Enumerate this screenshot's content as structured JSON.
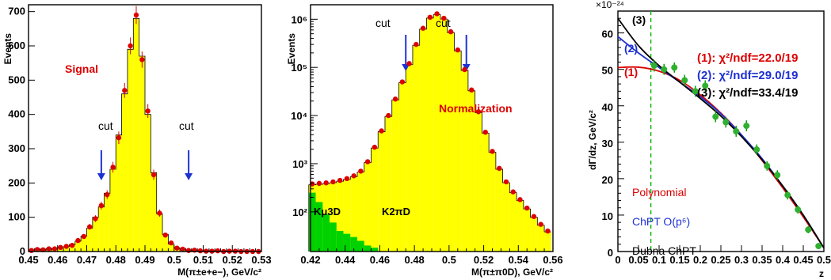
{
  "chart_data": [
    {
      "type": "bar",
      "ylabel": "Events",
      "xlabel": "M(π±e+e−), GeV/c²",
      "annotations": {
        "signal": "Signal",
        "cut_left": "cut",
        "cut_right": "cut"
      },
      "xlim": [
        0.45,
        0.53
      ],
      "ylim": [
        0,
        720
      ],
      "x_ticks": [
        0.45,
        0.46,
        0.47,
        0.48,
        0.49,
        0.5,
        0.51,
        0.52,
        0.53
      ],
      "x_tick_labels": [
        "0.45",
        "0.46",
        "0.47",
        "0.48",
        "0.49",
        "0.5",
        "0.51",
        "0.52",
        "0.53"
      ],
      "y_ticks": [
        0,
        100,
        200,
        300,
        400,
        500,
        600,
        700
      ],
      "y_tick_labels": [
        "0",
        "100",
        "200",
        "300",
        "400",
        "500",
        "600",
        "700"
      ],
      "cuts": [
        0.475,
        0.505
      ],
      "x": [
        0.451,
        0.453,
        0.455,
        0.457,
        0.459,
        0.461,
        0.463,
        0.465,
        0.467,
        0.469,
        0.471,
        0.473,
        0.475,
        0.477,
        0.479,
        0.481,
        0.483,
        0.485,
        0.487,
        0.489,
        0.491,
        0.493,
        0.495,
        0.497,
        0.499,
        0.501,
        0.503,
        0.505,
        0.507,
        0.509,
        0.511,
        0.513,
        0.515,
        0.517,
        0.519,
        0.521,
        0.523,
        0.525,
        0.527,
        0.529
      ],
      "mc_values": [
        4,
        5,
        6,
        7,
        9,
        11,
        14,
        20,
        30,
        45,
        68,
        100,
        130,
        170,
        240,
        340,
        460,
        590,
        680,
        570,
        400,
        230,
        110,
        50,
        22,
        11,
        6,
        4,
        3,
        2,
        2,
        1,
        1,
        1,
        1,
        0,
        0,
        0,
        0,
        0
      ],
      "data_values": [
        3,
        6,
        5,
        8,
        8,
        12,
        15,
        18,
        32,
        44,
        72,
        96,
        134,
        166,
        246,
        332,
        470,
        600,
        690,
        560,
        410,
        224,
        112,
        48,
        25,
        10,
        7,
        3,
        4,
        2,
        1,
        1,
        2,
        0,
        1,
        1,
        0,
        0,
        0,
        0
      ]
    },
    {
      "type": "bar",
      "ylabel": "Events",
      "xlabel": "M(π±π0D), GeV/c²",
      "log_scale": true,
      "annotations": {
        "normalization": "Normalization",
        "cut_left": "cut",
        "cut_right": "cut",
        "region_left": "Kμ3D",
        "region_right": "K2πD"
      },
      "xlim": [
        0.42,
        0.56
      ],
      "ylim": [
        15,
        2000000
      ],
      "x_ticks": [
        0.42,
        0.44,
        0.46,
        0.48,
        0.5,
        0.52,
        0.54,
        0.56
      ],
      "x_tick_labels": [
        "0.42",
        "0.44",
        "0.46",
        "0.48",
        "0.5",
        "0.52",
        "0.54",
        "0.56"
      ],
      "y_ticks": [
        100,
        1000,
        10000,
        100000,
        1000000
      ],
      "y_tick_labels": [
        "10²",
        "10³",
        "10⁴",
        "10⁵",
        "10⁶"
      ],
      "cuts": [
        0.475,
        0.51
      ],
      "x": [
        0.421,
        0.425,
        0.429,
        0.433,
        0.437,
        0.441,
        0.445,
        0.449,
        0.453,
        0.457,
        0.461,
        0.465,
        0.469,
        0.473,
        0.477,
        0.481,
        0.485,
        0.489,
        0.493,
        0.497,
        0.501,
        0.505,
        0.509,
        0.513,
        0.517,
        0.521,
        0.525,
        0.529,
        0.533,
        0.537,
        0.541,
        0.545,
        0.549,
        0.553,
        0.557
      ],
      "data_values": [
        380,
        390,
        400,
        420,
        450,
        490,
        560,
        700,
        1100,
        2200,
        4800,
        10000,
        22000,
        50000,
        120000,
        300000,
        650000,
        1100000,
        1300000,
        1050000,
        550000,
        230000,
        90000,
        34000,
        12000,
        4500,
        1800,
        800,
        420,
        260,
        180,
        120,
        80,
        55,
        40
      ],
      "green_values": [
        250,
        160,
        90,
        60,
        40,
        35,
        30,
        25,
        20,
        18,
        15,
        12,
        10,
        0,
        0,
        0,
        0,
        0,
        0,
        0,
        0,
        0,
        0,
        0,
        0,
        0,
        0,
        0,
        0,
        0,
        0,
        0,
        0,
        0,
        0
      ]
    },
    {
      "type": "scatter",
      "ylabel": "dΓ/dz, GeV/c²",
      "xlabel": "z",
      "y_exponent": "×10⁻²⁴",
      "xlim": [
        0,
        0.5
      ],
      "ylim": [
        0,
        66
      ],
      "x_ticks": [
        0,
        0.05,
        0.1,
        0.15,
        0.2,
        0.25,
        0.3,
        0.35,
        0.4,
        0.45,
        0.5
      ],
      "x_tick_labels": [
        "0",
        "0.05",
        "0.1",
        "0.15",
        "0.2",
        "0.25",
        "0.3",
        "0.35",
        "0.4",
        "0.45",
        "0.5"
      ],
      "y_ticks": [
        0,
        10,
        20,
        30,
        40,
        50,
        60
      ],
      "y_tick_labels": [
        "0",
        "10",
        "20",
        "30",
        "40",
        "50",
        "60"
      ],
      "cut_z": 0.08,
      "points": {
        "x": [
          0.088,
          0.112,
          0.137,
          0.162,
          0.188,
          0.212,
          0.237,
          0.262,
          0.287,
          0.312,
          0.337,
          0.362,
          0.387,
          0.412,
          0.437,
          0.462,
          0.487
        ],
        "y": [
          51.0,
          50.0,
          50.5,
          47.0,
          44.0,
          45.5,
          37.0,
          35.5,
          33.0,
          34.5,
          28.0,
          23.5,
          21.0,
          15.5,
          11.5,
          6.0,
          1.5
        ],
        "err": [
          1.6,
          1.5,
          1.4,
          1.5,
          1.5,
          1.5,
          1.5,
          1.5,
          1.5,
          1.5,
          1.4,
          1.3,
          1.3,
          1.2,
          1.1,
          1.0,
          0.8
        ]
      },
      "series": [
        {
          "name": "(1)",
          "color": "#dd0000",
          "x": [
            0,
            0.05,
            0.1,
            0.15,
            0.2,
            0.25,
            0.3,
            0.35,
            0.4,
            0.45,
            0.5
          ],
          "y": [
            50.5,
            50.6,
            49.5,
            47.0,
            43.0,
            38.0,
            32.0,
            25.0,
            17.5,
            9.5,
            1.0
          ]
        },
        {
          "name": "(2)",
          "color": "#1e32d2",
          "x": [
            0,
            0.05,
            0.1,
            0.15,
            0.2,
            0.25,
            0.3,
            0.35,
            0.4,
            0.45,
            0.5
          ],
          "y": [
            59.0,
            54.5,
            50.5,
            46.5,
            42.5,
            37.8,
            32.0,
            25.5,
            18.0,
            10.0,
            1.0
          ]
        },
        {
          "name": "(3)",
          "color": "#000000",
          "x": [
            0,
            0.05,
            0.1,
            0.15,
            0.2,
            0.25,
            0.3,
            0.35,
            0.4,
            0.45,
            0.5
          ],
          "y": [
            64.0,
            56.5,
            51.0,
            46.5,
            42.0,
            37.2,
            31.6,
            25.2,
            18.0,
            10.0,
            1.0
          ]
        }
      ],
      "legend": [
        {
          "label": "(1): χ²/ndf=22.0/19",
          "color": "#dd0000"
        },
        {
          "label": "(2): χ²/ndf=29.0/19",
          "color": "#1e32d2"
        },
        {
          "label": "(3): χ²/ndf=33.4/19",
          "color": "#000000"
        }
      ],
      "model_labels": [
        {
          "label": "Polynomial",
          "color": "#dd0000"
        },
        {
          "label": "ChPT O(p⁶)",
          "color": "#1e32d2"
        },
        {
          "label": "Dubna ChPT",
          "color": "#000000"
        }
      ],
      "curve_tags": [
        {
          "label": "(1)",
          "color": "#dd0000"
        },
        {
          "label": "(2)",
          "color": "#1e32d2"
        },
        {
          "label": "(3)",
          "color": "#000000"
        }
      ]
    }
  ]
}
